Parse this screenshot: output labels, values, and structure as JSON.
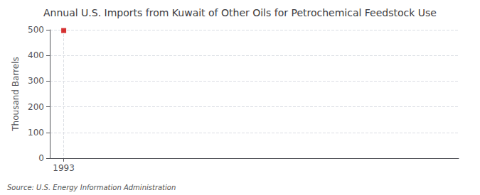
{
  "chart_data": {
    "type": "scatter",
    "title": "Annual U.S. Imports from Kuwait of Other Oils for Petrochemical Feedstock Use",
    "ylabel": "Thousand Barrels",
    "source": "Source: U.S. Energy Information Administration",
    "x": [
      1993
    ],
    "values": [
      497
    ],
    "color": "#cc0000",
    "marker": "square",
    "xlim": [
      1992.4,
      2010
    ],
    "xticks": [
      1993
    ],
    "ylim": [
      0,
      500
    ],
    "yticks": [
      0,
      100,
      200,
      300,
      400,
      500
    ],
    "grid": true
  }
}
